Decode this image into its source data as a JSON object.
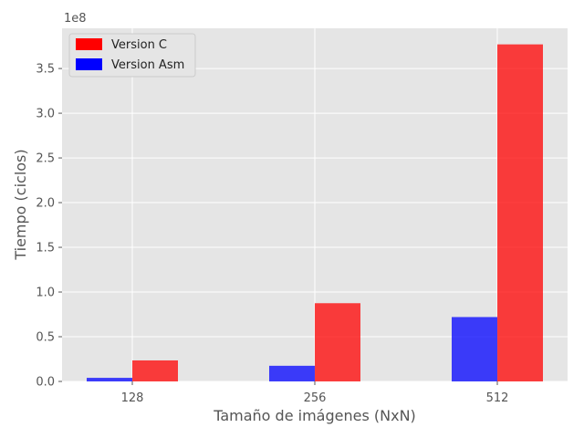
{
  "chart_data": {
    "type": "bar",
    "categories": [
      "128",
      "256",
      "512"
    ],
    "series": [
      {
        "name": "Version Asm",
        "color": "#0000ff",
        "values": [
          4000000,
          17500000,
          72000000
        ]
      },
      {
        "name": "Version C",
        "color": "#ff0000",
        "values": [
          23500000,
          87500000,
          377000000
        ]
      }
    ],
    "legend_order": [
      "Version C",
      "Version Asm"
    ],
    "xlabel": "Tamaño de imágenes (NxN)",
    "ylabel": "Tiempo (ciclos)",
    "y_offset_label": "1e8",
    "ylim": [
      0,
      395000000
    ],
    "yticks": [
      {
        "value": 0,
        "label": "0.0"
      },
      {
        "value": 50000000,
        "label": "0.5"
      },
      {
        "value": 100000000,
        "label": "1.0"
      },
      {
        "value": 150000000,
        "label": "1.5"
      },
      {
        "value": 200000000,
        "label": "2.0"
      },
      {
        "value": 250000000,
        "label": "2.5"
      },
      {
        "value": 300000000,
        "label": "3.0"
      },
      {
        "value": 350000000,
        "label": "3.5"
      }
    ],
    "grid": true,
    "legend_position": "top-left",
    "style": "ggplot"
  }
}
